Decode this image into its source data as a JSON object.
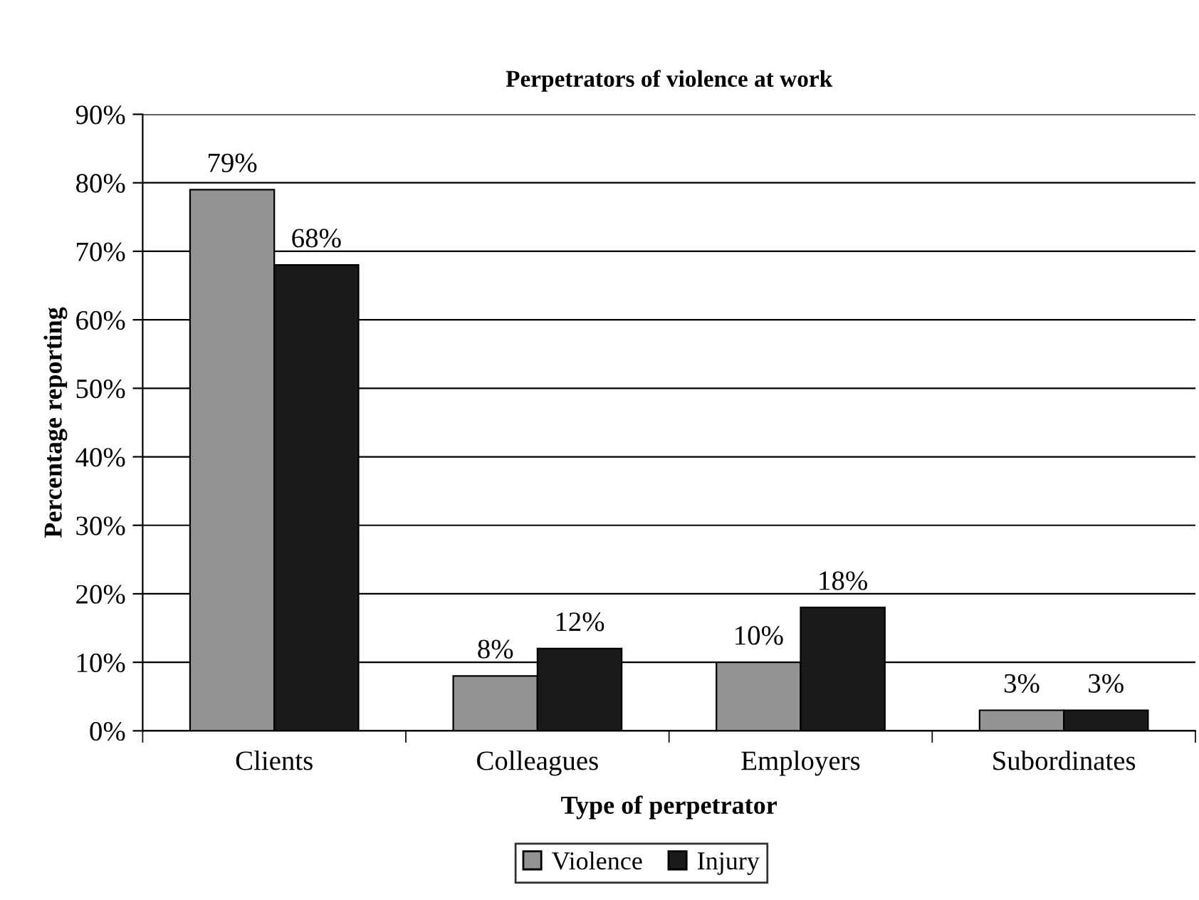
{
  "chart_data": {
    "type": "bar",
    "title": "Perpetrators of violence at work",
    "xlabel": "Type of perpetrator",
    "ylabel": "Percentage reporting",
    "categories": [
      "Clients",
      "Colleagues",
      "Employers",
      "Subordinates"
    ],
    "series": [
      {
        "name": "Violence",
        "color": "#939393",
        "values": [
          79,
          8,
          10,
          3
        ],
        "value_labels": [
          "79%",
          "8%",
          "10%",
          "3%"
        ]
      },
      {
        "name": "Injury",
        "color": "#1a1a1a",
        "values": [
          68,
          12,
          18,
          3
        ],
        "value_labels": [
          "68%",
          "12%",
          "18%",
          "3%"
        ]
      }
    ],
    "ylim": [
      0,
      90
    ],
    "yticks": [
      {
        "value": 0,
        "label": "0%"
      },
      {
        "value": 10,
        "label": "10%"
      },
      {
        "value": 20,
        "label": "20%"
      },
      {
        "value": 30,
        "label": "30%"
      },
      {
        "value": 40,
        "label": "40%"
      },
      {
        "value": 50,
        "label": "50%"
      },
      {
        "value": 60,
        "label": "60%"
      },
      {
        "value": 70,
        "label": "70%"
      },
      {
        "value": 80,
        "label": "80%"
      },
      {
        "value": 90,
        "label": "90%"
      }
    ],
    "grid": "y",
    "legend": "bottom"
  }
}
